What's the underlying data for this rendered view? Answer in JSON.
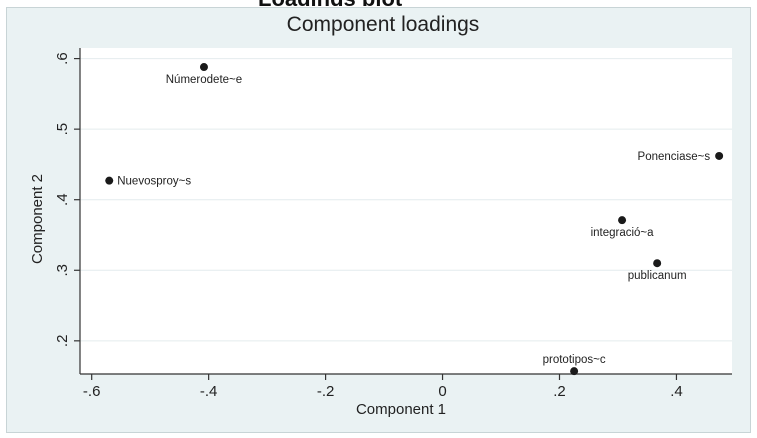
{
  "chart_data": {
    "type": "scatter",
    "title": "Component loadings",
    "xlabel": "Component 1",
    "ylabel": "Component 2",
    "xlim": [
      -0.62,
      0.495
    ],
    "ylim": [
      0.153,
      0.615
    ],
    "x_ticks": [
      {
        "value": -0.6,
        "label": "-.6"
      },
      {
        "value": -0.4,
        "label": "-.4"
      },
      {
        "value": -0.2,
        "label": "-.2"
      },
      {
        "value": 0,
        "label": "0"
      },
      {
        "value": 0.2,
        "label": ".2"
      },
      {
        "value": 0.4,
        "label": ".4"
      }
    ],
    "y_ticks": [
      {
        "value": 0.2,
        "label": ".2"
      },
      {
        "value": 0.3,
        "label": ".3"
      },
      {
        "value": 0.4,
        "label": ".4"
      },
      {
        "value": 0.5,
        "label": ".5"
      },
      {
        "value": 0.6,
        "label": ".6"
      }
    ],
    "grid": true,
    "points": [
      {
        "label": "Númerodete~e",
        "x": -0.408,
        "y": 0.588,
        "label_pos": "below"
      },
      {
        "label": "Nuevosproy~s",
        "x": -0.57,
        "y": 0.427,
        "label_pos": "right"
      },
      {
        "label": "Ponenciase~s",
        "x": 0.473,
        "y": 0.462,
        "label_pos": "left"
      },
      {
        "label": "integració~a",
        "x": 0.307,
        "y": 0.371,
        "label_pos": "below"
      },
      {
        "label": "publicanum",
        "x": 0.367,
        "y": 0.31,
        "label_pos": "below"
      },
      {
        "label": "prototipos~c",
        "x": 0.225,
        "y": 0.157,
        "label_pos": "above"
      }
    ],
    "colors": {
      "panel_bg": "#eaf2f3",
      "plot_bg": "#ffffff",
      "grid": "#e4ecee",
      "marker": "#1a1a1a",
      "axis": "#333333"
    }
  }
}
